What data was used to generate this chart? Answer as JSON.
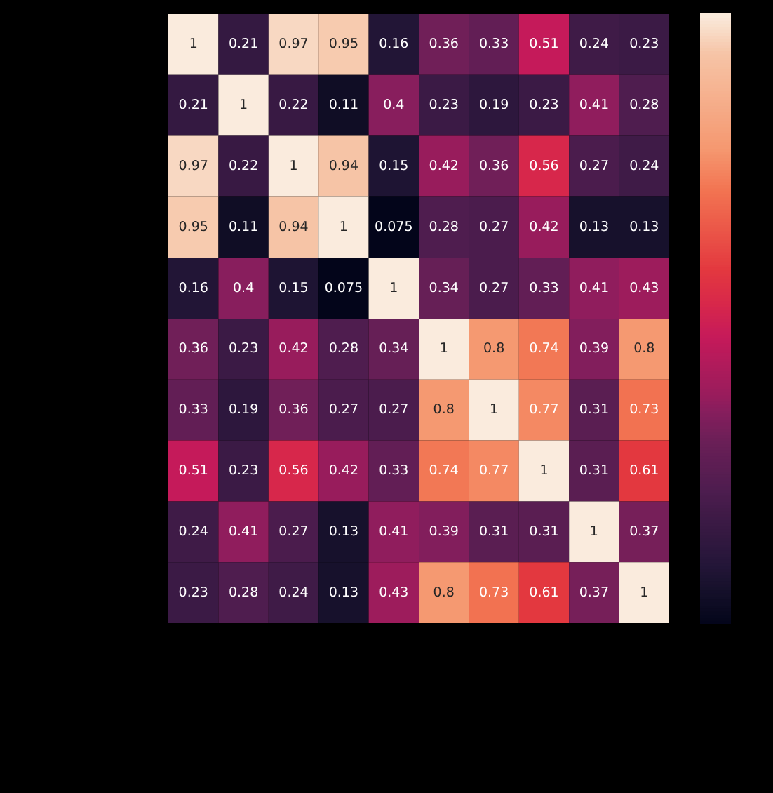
{
  "chart_data": {
    "type": "heatmap",
    "categories": [
      null,
      null,
      null,
      null,
      null,
      null,
      null,
      null,
      null,
      null
    ],
    "y_categories": [
      null,
      null,
      null,
      null,
      null,
      null,
      null,
      null,
      null,
      null
    ],
    "cells": [
      [
        1,
        0.21,
        0.97,
        0.95,
        0.16,
        0.36,
        0.33,
        0.51,
        0.24,
        0.23
      ],
      [
        0.21,
        1,
        0.22,
        0.11,
        0.4,
        0.23,
        0.19,
        0.23,
        0.41,
        0.28
      ],
      [
        0.97,
        0.22,
        1,
        0.94,
        0.15,
        0.42,
        0.36,
        0.56,
        0.27,
        0.24
      ],
      [
        0.95,
        0.11,
        0.94,
        1,
        0.075,
        0.28,
        0.27,
        0.42,
        0.13,
        0.13
      ],
      [
        0.16,
        0.4,
        0.15,
        0.075,
        1,
        0.34,
        0.27,
        0.33,
        0.41,
        0.43
      ],
      [
        0.36,
        0.23,
        0.42,
        0.28,
        0.34,
        1,
        0.8,
        0.74,
        0.39,
        0.8
      ],
      [
        0.33,
        0.19,
        0.36,
        0.27,
        0.27,
        0.8,
        1,
        0.77,
        0.31,
        0.73
      ],
      [
        0.51,
        0.23,
        0.56,
        0.42,
        0.33,
        0.74,
        0.77,
        1,
        0.31,
        0.61
      ],
      [
        0.24,
        0.41,
        0.27,
        0.13,
        0.41,
        0.39,
        0.31,
        0.31,
        1,
        0.37
      ],
      [
        0.23,
        0.28,
        0.24,
        0.13,
        0.43,
        0.8,
        0.73,
        0.61,
        0.37,
        1
      ]
    ],
    "data_labels": true,
    "tick_labels": false
  }
}
